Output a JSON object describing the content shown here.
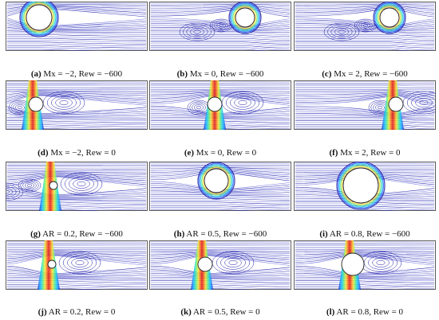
{
  "panels": [
    {
      "tag": "(a)",
      "desc": "Mx = −2, Rew = −600",
      "variant": "ring_small"
    },
    {
      "tag": "(b)",
      "desc": "Mx = 0, Rew = −600",
      "variant": "ring_cylinder_vortices"
    },
    {
      "tag": "(c)",
      "desc": "Mx = 2, Rew = −600",
      "variant": "ring_cylinder_vortices"
    },
    {
      "tag": "(d)",
      "desc": "Mx = −2, Rew = 0",
      "variant": "jet_left"
    },
    {
      "tag": "(e)",
      "desc": "Mx = 0, Rew = 0",
      "variant": "jet_center"
    },
    {
      "tag": "(f)",
      "desc": "Mx = 2, Rew = 0",
      "variant": "jet_right"
    },
    {
      "tag": "(g)",
      "desc": "AR = 0.2, Rew = −600",
      "variant": "jet_small_vortices"
    },
    {
      "tag": "(h)",
      "desc": "AR = 0.5, Rew = −600",
      "variant": "ring_medium"
    },
    {
      "tag": "(i)",
      "desc": "AR = 0.8, Rew = −600",
      "variant": "ring_large"
    },
    {
      "tag": "(j)",
      "desc": "AR = 0.2, Rew = 0",
      "variant": "jet_small"
    },
    {
      "tag": "(k)",
      "desc": "AR = 0.5, Rew = 0",
      "variant": "jet_medium"
    },
    {
      "tag": "(l)",
      "desc": "AR = 0.8, Rew = 0",
      "variant": "jet_large"
    }
  ],
  "colors": {
    "streamline": "#1a1aa8",
    "streamline_light": "#5f63d8",
    "jet": [
      "#0c1cb8",
      "#1e90ff",
      "#22d3e6",
      "#6ef07a",
      "#f4e83a",
      "#ff7a1a",
      "#e21818"
    ]
  }
}
